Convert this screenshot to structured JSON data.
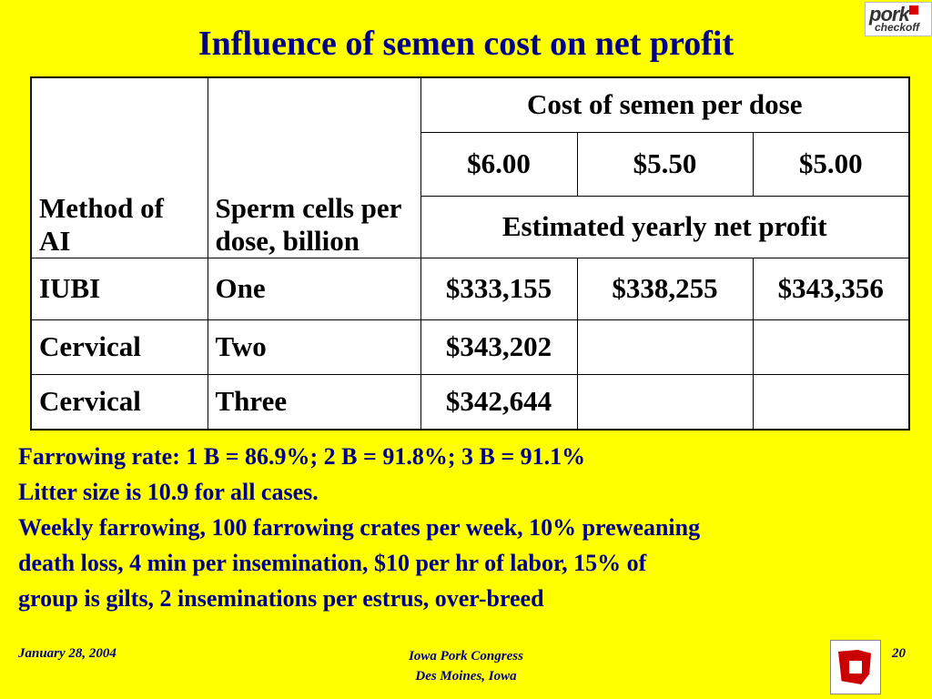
{
  "title": "Influence of semen cost on net profit",
  "logo": {
    "text_top": "pork",
    "text_bottom": "checkoff"
  },
  "table": {
    "col_method": "Method of AI",
    "col_cells": "Sperm cells per dose, billion",
    "cost_header": "Cost of semen per dose",
    "costs": [
      "$6.00",
      "$5.50",
      "$5.00"
    ],
    "profit_header": "Estimated yearly net profit",
    "rows": [
      {
        "method": "IUBI",
        "cells": "One",
        "values": [
          "$333,155",
          "$338,255",
          "$343,356"
        ]
      },
      {
        "method": "Cervical",
        "cells": "Two",
        "values": [
          "$343,202",
          "",
          ""
        ]
      },
      {
        "method": "Cervical",
        "cells": "Three",
        "values": [
          "$342,644",
          "",
          ""
        ]
      }
    ]
  },
  "notes": [
    "Farrowing rate: 1 B = 86.9%; 2 B = 91.8%; 3 B = 91.1%",
    "Litter size is 10.9 for all cases.",
    "Weekly farrowing, 100 farrowing crates per week, 10% preweaning",
    "death loss, 4 min per insemination, $10 per hr of labor, 15% of",
    "group is gilts, 2 inseminations per estrus, over-breed"
  ],
  "footer": {
    "date": "January 28, 2004",
    "event_line1": "Iowa Pork Congress",
    "event_line2": "Des Moines, Iowa",
    "page": "20"
  }
}
